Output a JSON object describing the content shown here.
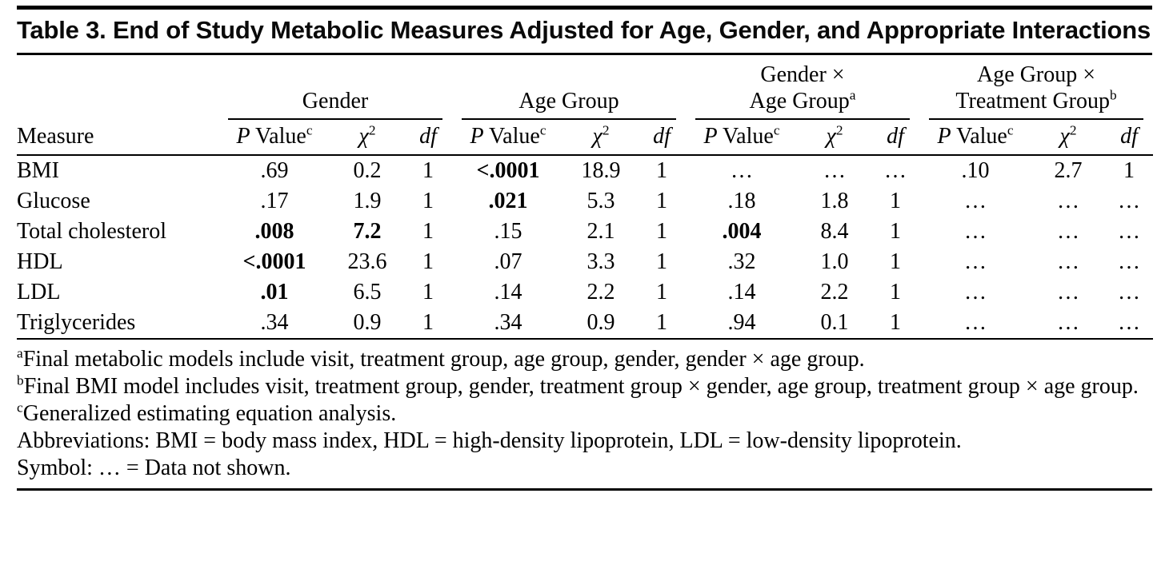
{
  "title": "Table 3. End of Study Metabolic Measures Adjusted for Age, Gender, and Appropriate Interactions",
  "table": {
    "measure_header": "Measure",
    "groups": [
      {
        "line1": "Gender",
        "line2": "",
        "sup": ""
      },
      {
        "line1": "Age Group",
        "line2": "",
        "sup": ""
      },
      {
        "line1": "Gender ×",
        "line2": "Age Group",
        "sup": "a"
      },
      {
        "line1": "Age Group ×",
        "line2": "Treatment Group",
        "sup": "b"
      }
    ],
    "subheaders": {
      "p_italic": "P",
      "p_rest": " Value",
      "p_sup": "c",
      "chi": "χ",
      "chi_sup": "2",
      "df": "df"
    },
    "rows": [
      {
        "measure": "BMI",
        "values": [
          ".69",
          "0.2",
          "1",
          "<.0001",
          "18.9",
          "1",
          "…",
          "…",
          "…",
          ".10",
          "2.7",
          "1"
        ],
        "bold": [
          3
        ]
      },
      {
        "measure": "Glucose",
        "values": [
          ".17",
          "1.9",
          "1",
          ".021",
          "5.3",
          "1",
          ".18",
          "1.8",
          "1",
          "…",
          "…",
          "…"
        ],
        "bold": [
          3
        ]
      },
      {
        "measure": "Total cholesterol",
        "values": [
          ".008",
          "7.2",
          "1",
          ".15",
          "2.1",
          "1",
          ".004",
          "8.4",
          "1",
          "…",
          "…",
          "…"
        ],
        "bold": [
          0,
          1,
          6
        ]
      },
      {
        "measure": "HDL",
        "values": [
          "<.0001",
          "23.6",
          "1",
          ".07",
          "3.3",
          "1",
          ".32",
          "1.0",
          "1",
          "…",
          "…",
          "…"
        ],
        "bold": [
          0
        ]
      },
      {
        "measure": "LDL",
        "values": [
          ".01",
          "6.5",
          "1",
          ".14",
          "2.2",
          "1",
          ".14",
          "2.2",
          "1",
          "…",
          "…",
          "…"
        ],
        "bold": [
          0
        ]
      },
      {
        "measure": "Triglycerides",
        "values": [
          ".34",
          "0.9",
          "1",
          ".34",
          "0.9",
          "1",
          ".94",
          "0.1",
          "1",
          "…",
          "…",
          "…"
        ],
        "bold": []
      }
    ]
  },
  "footnotes": [
    {
      "sup": "a",
      "text": "Final metabolic models include visit, treatment group, age group, gender, gender × age group."
    },
    {
      "sup": "b",
      "text": "Final BMI model includes visit, treatment group, gender, treatment group × gender, age group, treatment group × age group."
    },
    {
      "sup": "c",
      "text": "Generalized estimating equation analysis."
    },
    {
      "sup": "",
      "text": "Abbreviations: BMI = body mass index, HDL = high-density lipoprotein, LDL = low-density lipoprotein."
    },
    {
      "sup": "",
      "text": "Symbol: … = Data not shown."
    }
  ]
}
